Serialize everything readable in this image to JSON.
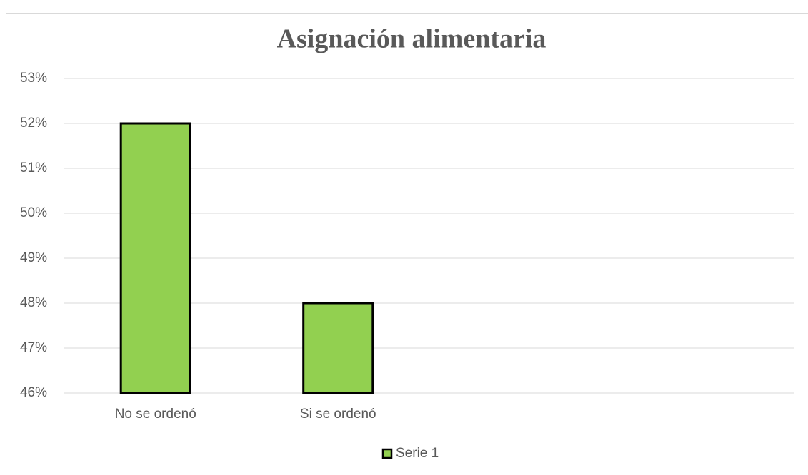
{
  "chart_data": {
    "type": "bar",
    "title": "Asignación alimentaria",
    "categories": [
      "No se ordenó",
      "Si se ordenó",
      null,
      null
    ],
    "series": [
      {
        "name": "Serie 1",
        "color": "#92d050",
        "values": [
          52,
          48,
          null,
          null
        ]
      }
    ],
    "ylim": [
      46,
      53
    ],
    "yticks": [
      {
        "value": 46,
        "label": "46%"
      },
      {
        "value": 47,
        "label": "47%"
      },
      {
        "value": 48,
        "label": "48%"
      },
      {
        "value": 49,
        "label": "49%"
      },
      {
        "value": 50,
        "label": "50%"
      },
      {
        "value": 51,
        "label": "51%"
      },
      {
        "value": 52,
        "label": "52%"
      },
      {
        "value": 53,
        "label": "53%"
      }
    ],
    "grid": true,
    "legend": "bottom"
  }
}
